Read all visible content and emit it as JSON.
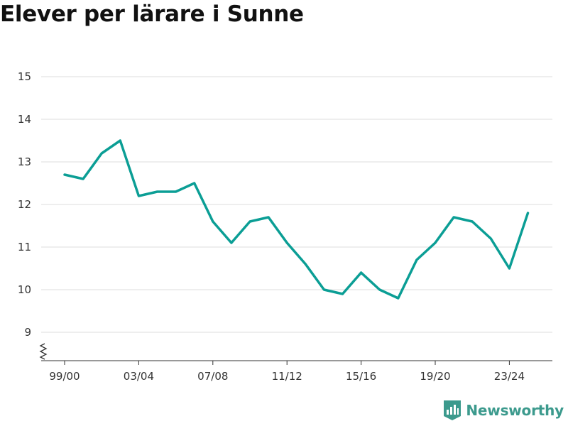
{
  "title": "Elever per lärare i Sunne",
  "brand": {
    "name": "Newsworthy",
    "color": "#3c9a8d",
    "icon": "bar-chart-bookmark-icon"
  },
  "chart_data": {
    "type": "line",
    "title": "Elever per lärare i Sunne",
    "xlabel": "",
    "ylabel": "",
    "x": [
      "99/00",
      "00/01",
      "01/02",
      "02/03",
      "03/04",
      "04/05",
      "05/06",
      "06/07",
      "07/08",
      "08/09",
      "09/10",
      "10/11",
      "11/12",
      "12/13",
      "13/14",
      "14/15",
      "15/16",
      "16/17",
      "17/18",
      "18/19",
      "19/20",
      "20/21",
      "21/22",
      "22/23",
      "23/24",
      "24/25"
    ],
    "x_tick_labels": [
      "99/00",
      "03/04",
      "07/08",
      "11/12",
      "15/16",
      "19/20",
      "23/24"
    ],
    "y_tick_labels": [
      "9",
      "10",
      "11",
      "12",
      "13",
      "14",
      "15"
    ],
    "ylim": [
      9,
      15
    ],
    "y_axis_broken": true,
    "grid": "horizontal",
    "series": [
      {
        "color": "#0b9e95",
        "values": [
          12.7,
          12.6,
          13.2,
          13.5,
          12.2,
          12.3,
          12.3,
          12.5,
          11.6,
          11.1,
          11.6,
          11.7,
          11.1,
          10.6,
          10.0,
          9.9,
          10.4,
          10.0,
          9.8,
          10.7,
          11.1,
          11.7,
          11.6,
          11.2,
          10.5,
          11.8
        ]
      }
    ]
  }
}
